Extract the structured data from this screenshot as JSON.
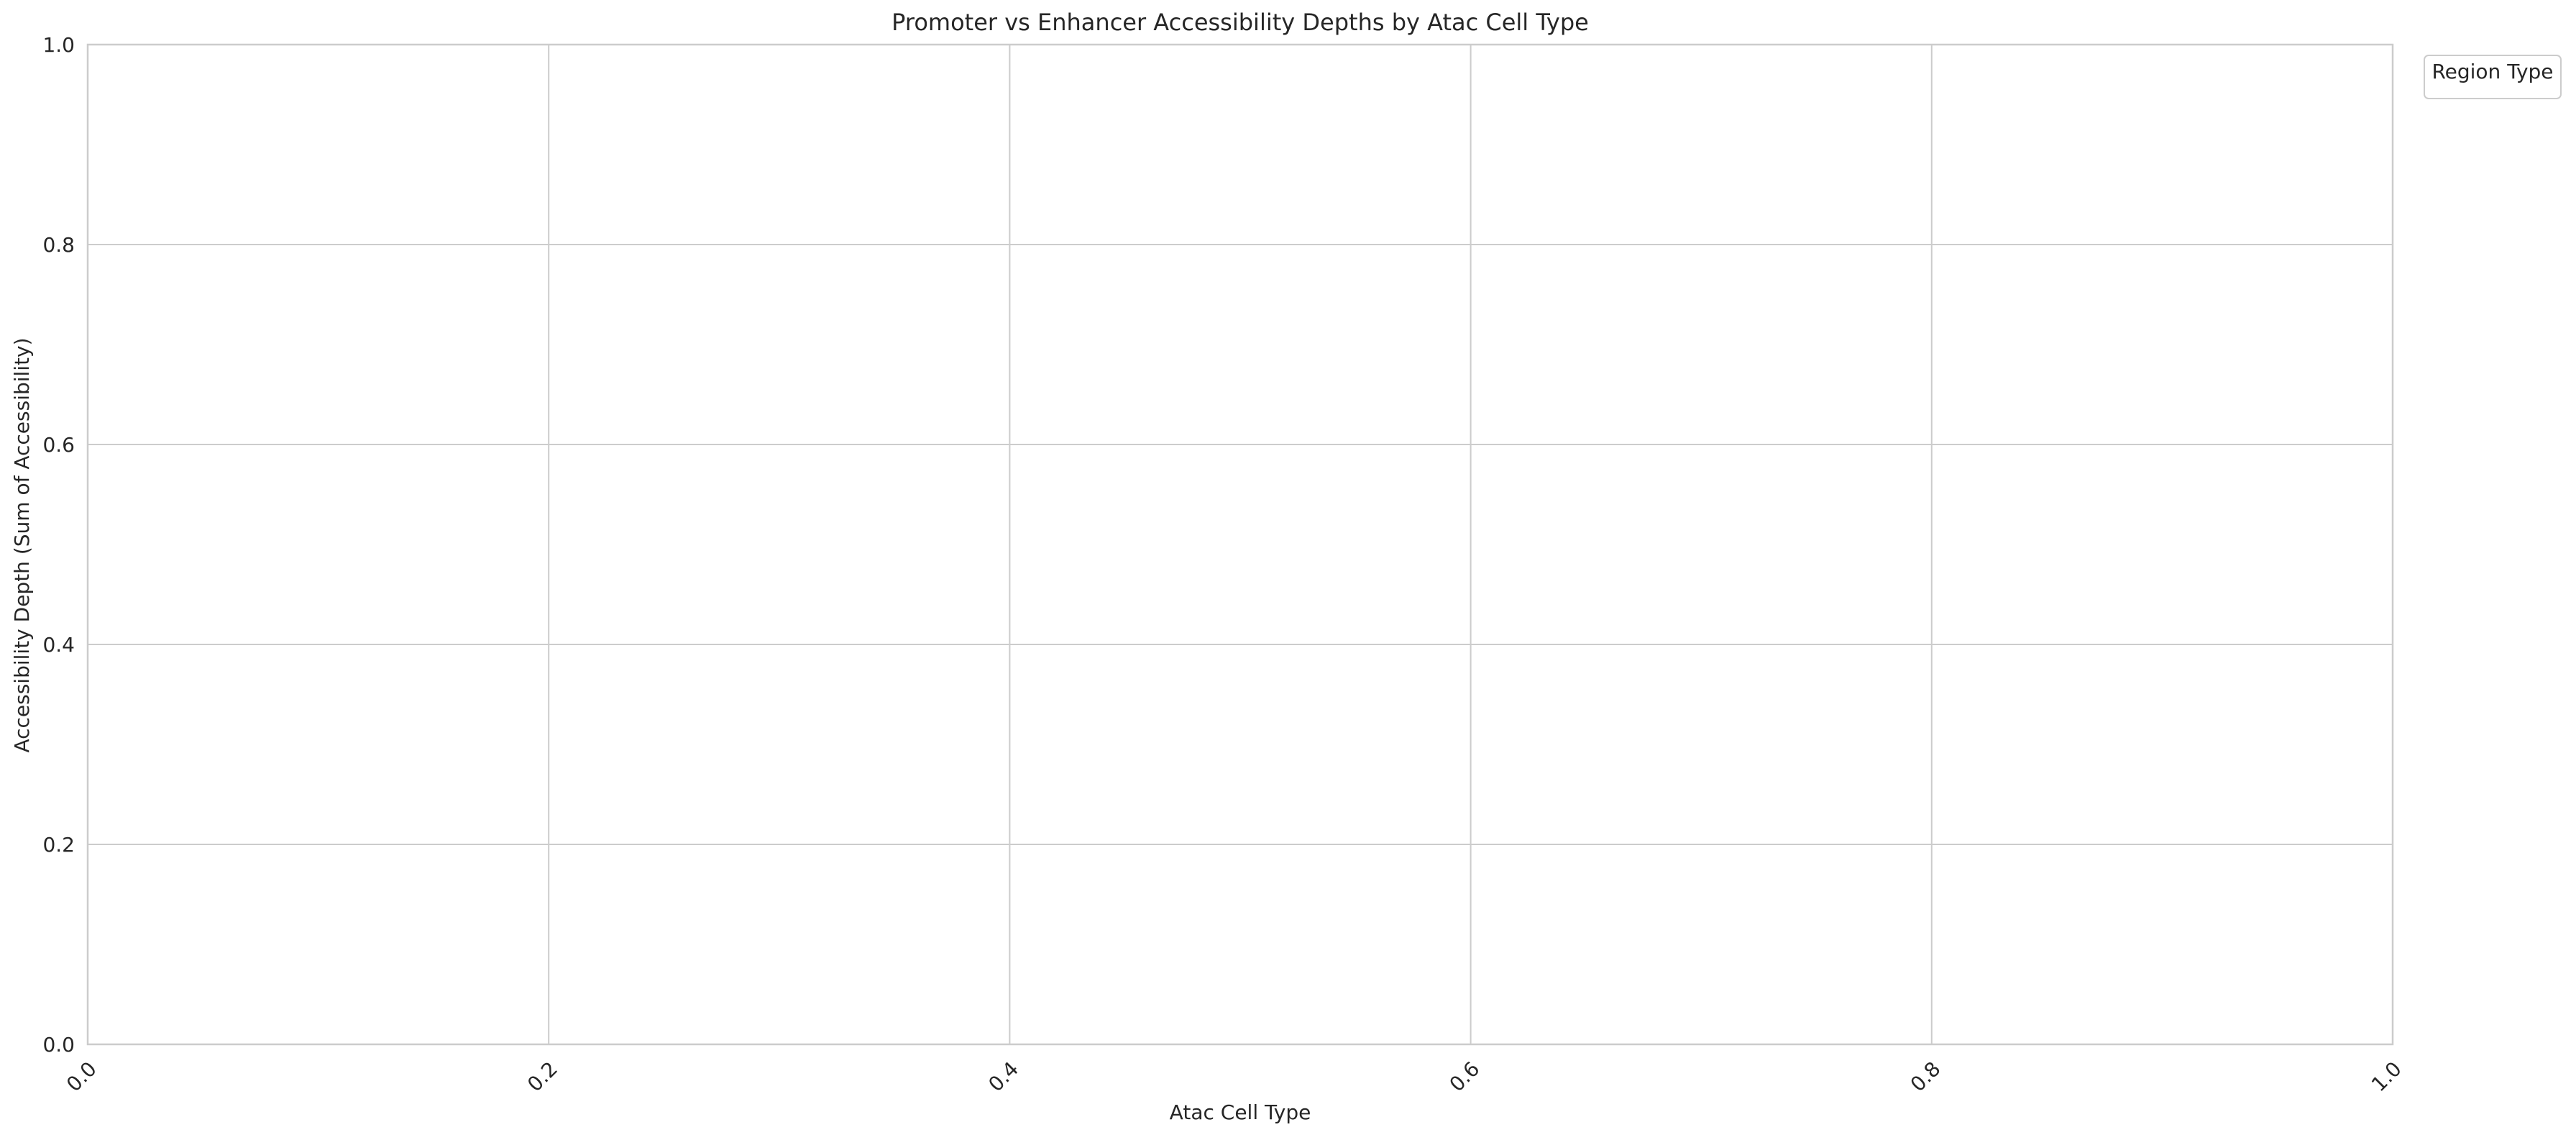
{
  "chart_data": {
    "type": "bar",
    "title": "Promoter vs Enhancer Accessibility Depths by Atac Cell Type",
    "xlabel": "Atac Cell Type",
    "ylabel": "Accessibility Depth (Sum of Accessibility)",
    "legend_title": "Region Type",
    "legend_position": "outside-top-right",
    "grid": true,
    "categories": [],
    "series": [],
    "xlim": [
      0,
      1
    ],
    "ylim": [
      0,
      1
    ],
    "x_ticks": [
      "0.0",
      "0.2",
      "0.4",
      "0.6",
      "0.8",
      "1.0"
    ],
    "y_ticks": [
      "0.0",
      "0.2",
      "0.4",
      "0.6",
      "0.8",
      "1.0"
    ],
    "colors": {
      "grid": "#cccccc",
      "axes_edge": "#cccccc",
      "text": "#262626",
      "background": "#ffffff"
    }
  }
}
